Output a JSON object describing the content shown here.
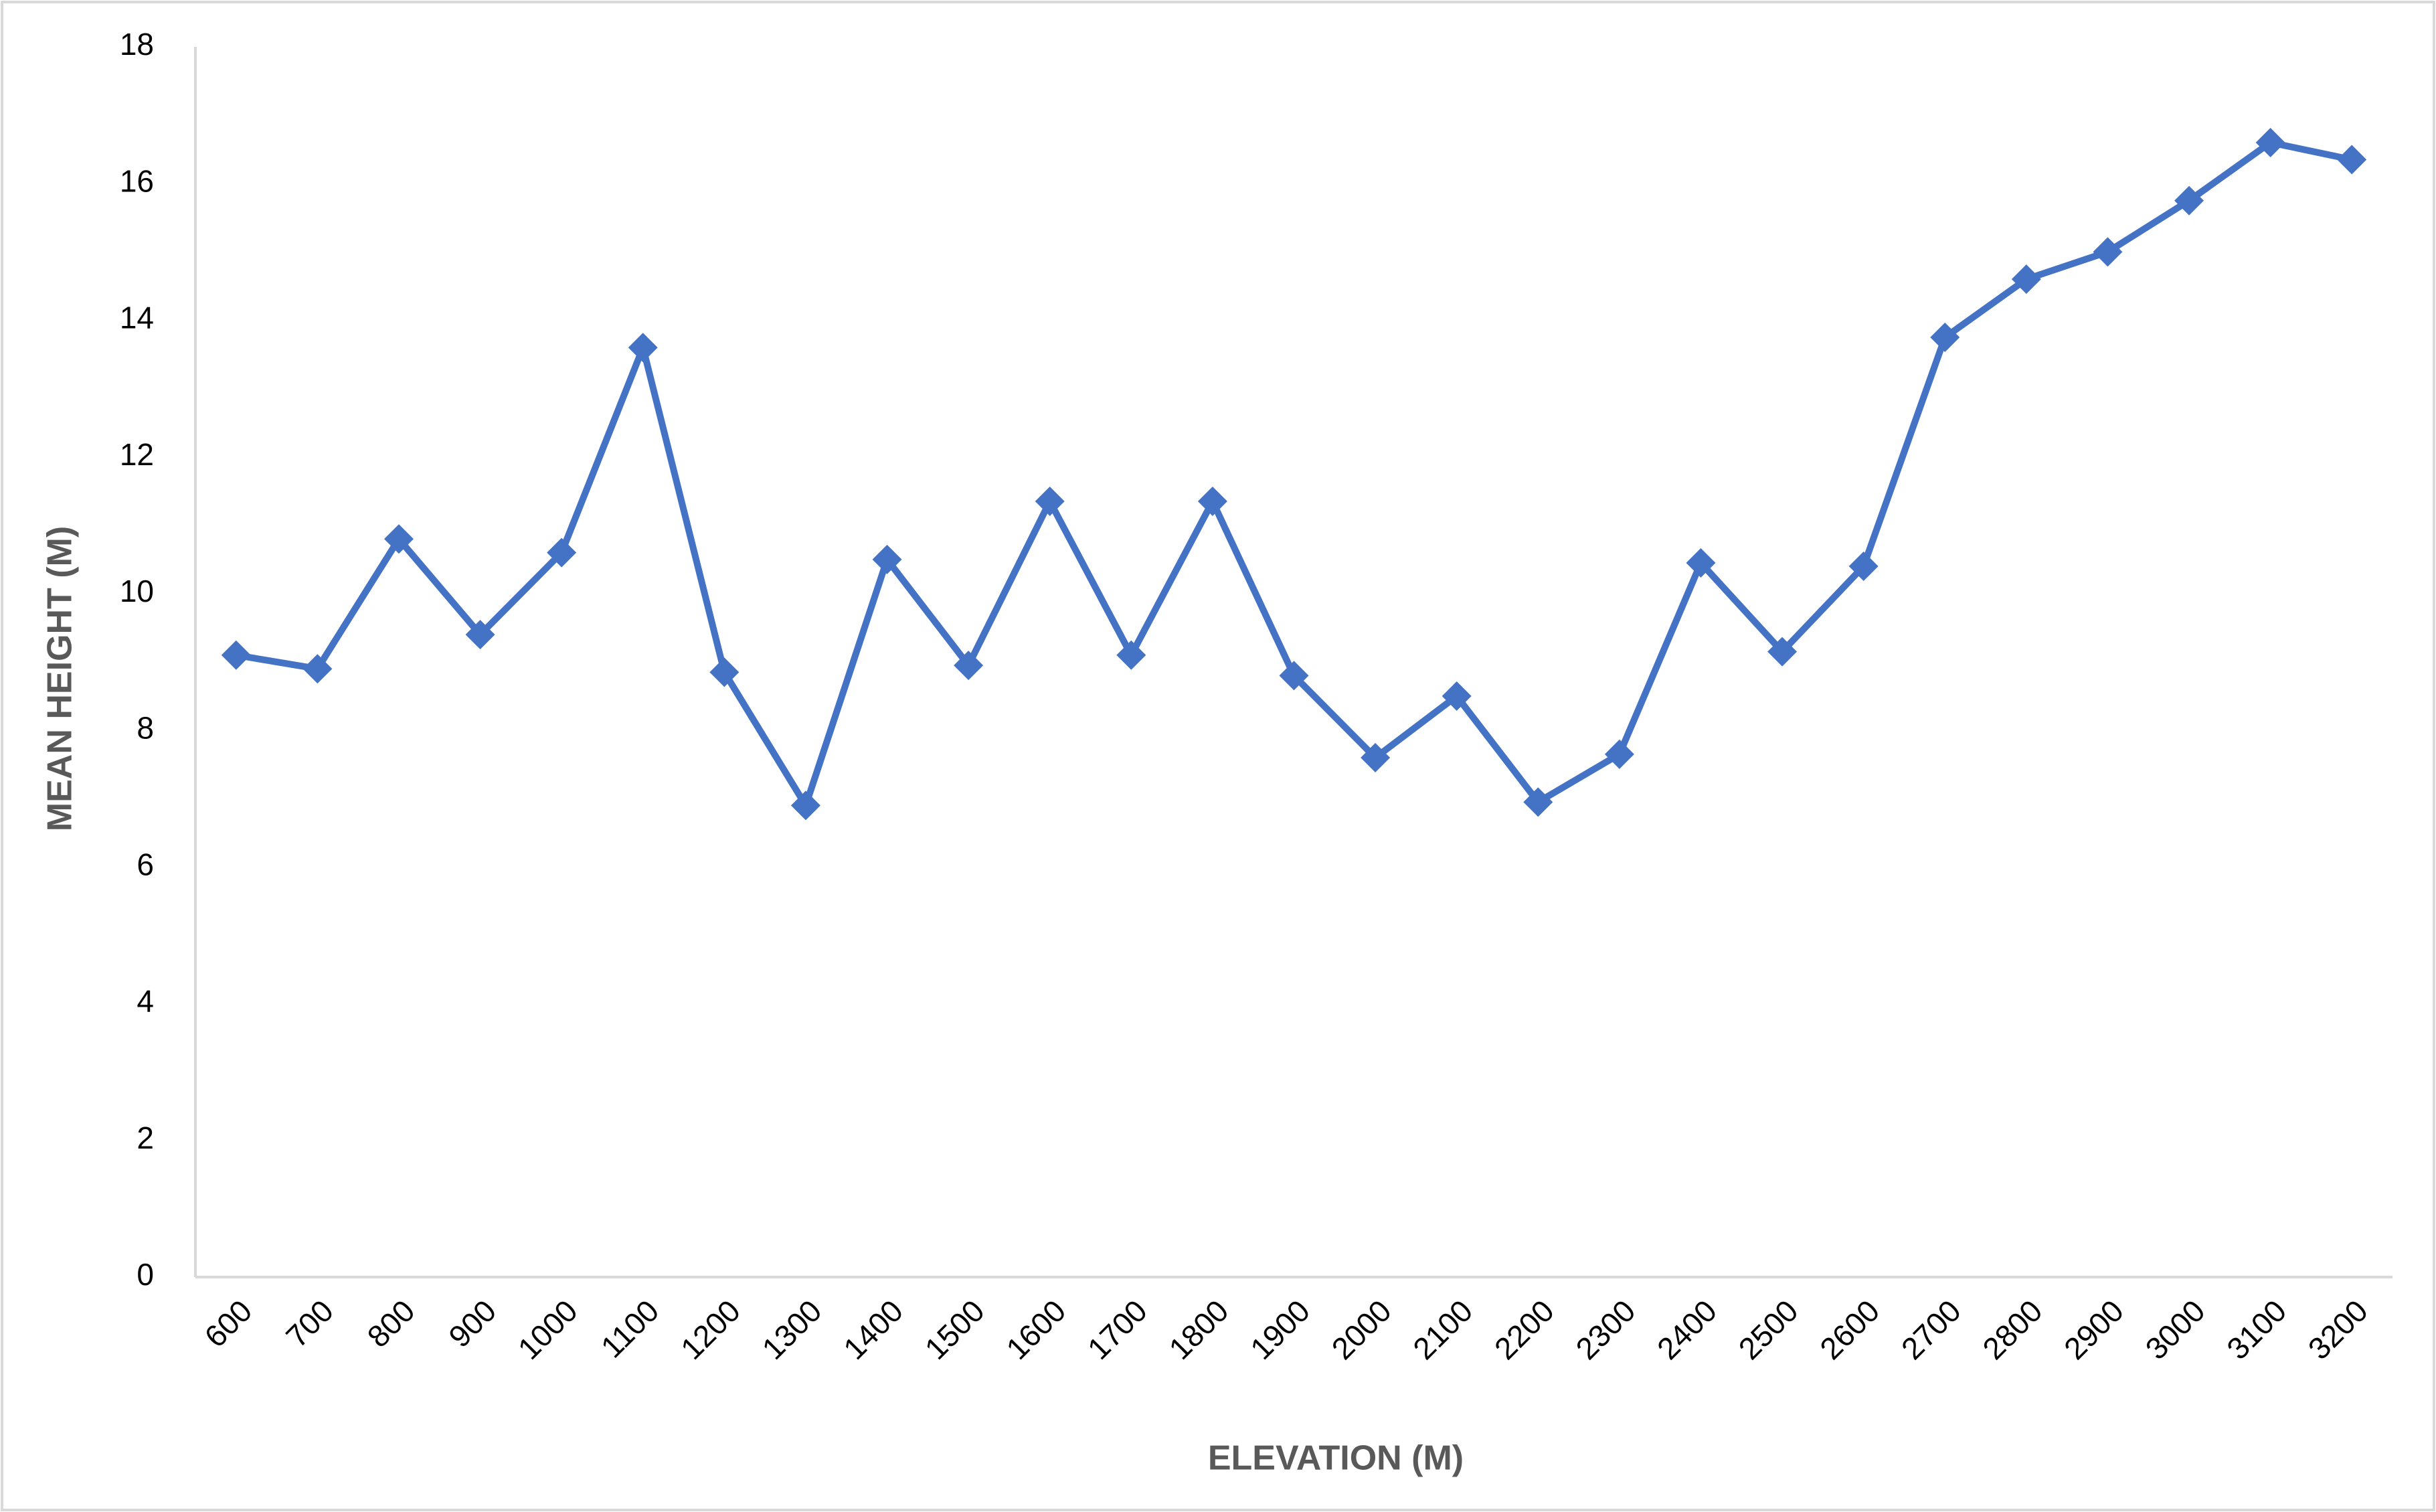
{
  "chart_data": {
    "type": "line",
    "x_label": "ELEVATION (M)",
    "y_label": "MEAN HEIGHT (M)",
    "categories": [
      "600",
      "700",
      "800",
      "900",
      "1000",
      "1100",
      "1200",
      "1300",
      "1400",
      "1500",
      "1600",
      "1700",
      "1800",
      "1900",
      "2000",
      "2100",
      "2200",
      "2300",
      "2400",
      "2500",
      "2600",
      "2700",
      "2800",
      "2900",
      "3000",
      "3100",
      "3200"
    ],
    "values": [
      9.1,
      8.9,
      10.8,
      9.4,
      10.6,
      13.6,
      8.85,
      6.9,
      10.5,
      8.95,
      11.35,
      9.1,
      11.35,
      8.8,
      7.6,
      8.5,
      6.95,
      7.65,
      10.45,
      9.15,
      10.4,
      13.75,
      14.6,
      15.0,
      15.75,
      16.6,
      16.35
    ],
    "color": "#4472c4",
    "marker": "diamond",
    "ylim": [
      0,
      18
    ],
    "yticks": [
      0,
      2,
      4,
      6,
      8,
      10,
      12,
      14,
      16,
      18
    ],
    "grid": false
  }
}
